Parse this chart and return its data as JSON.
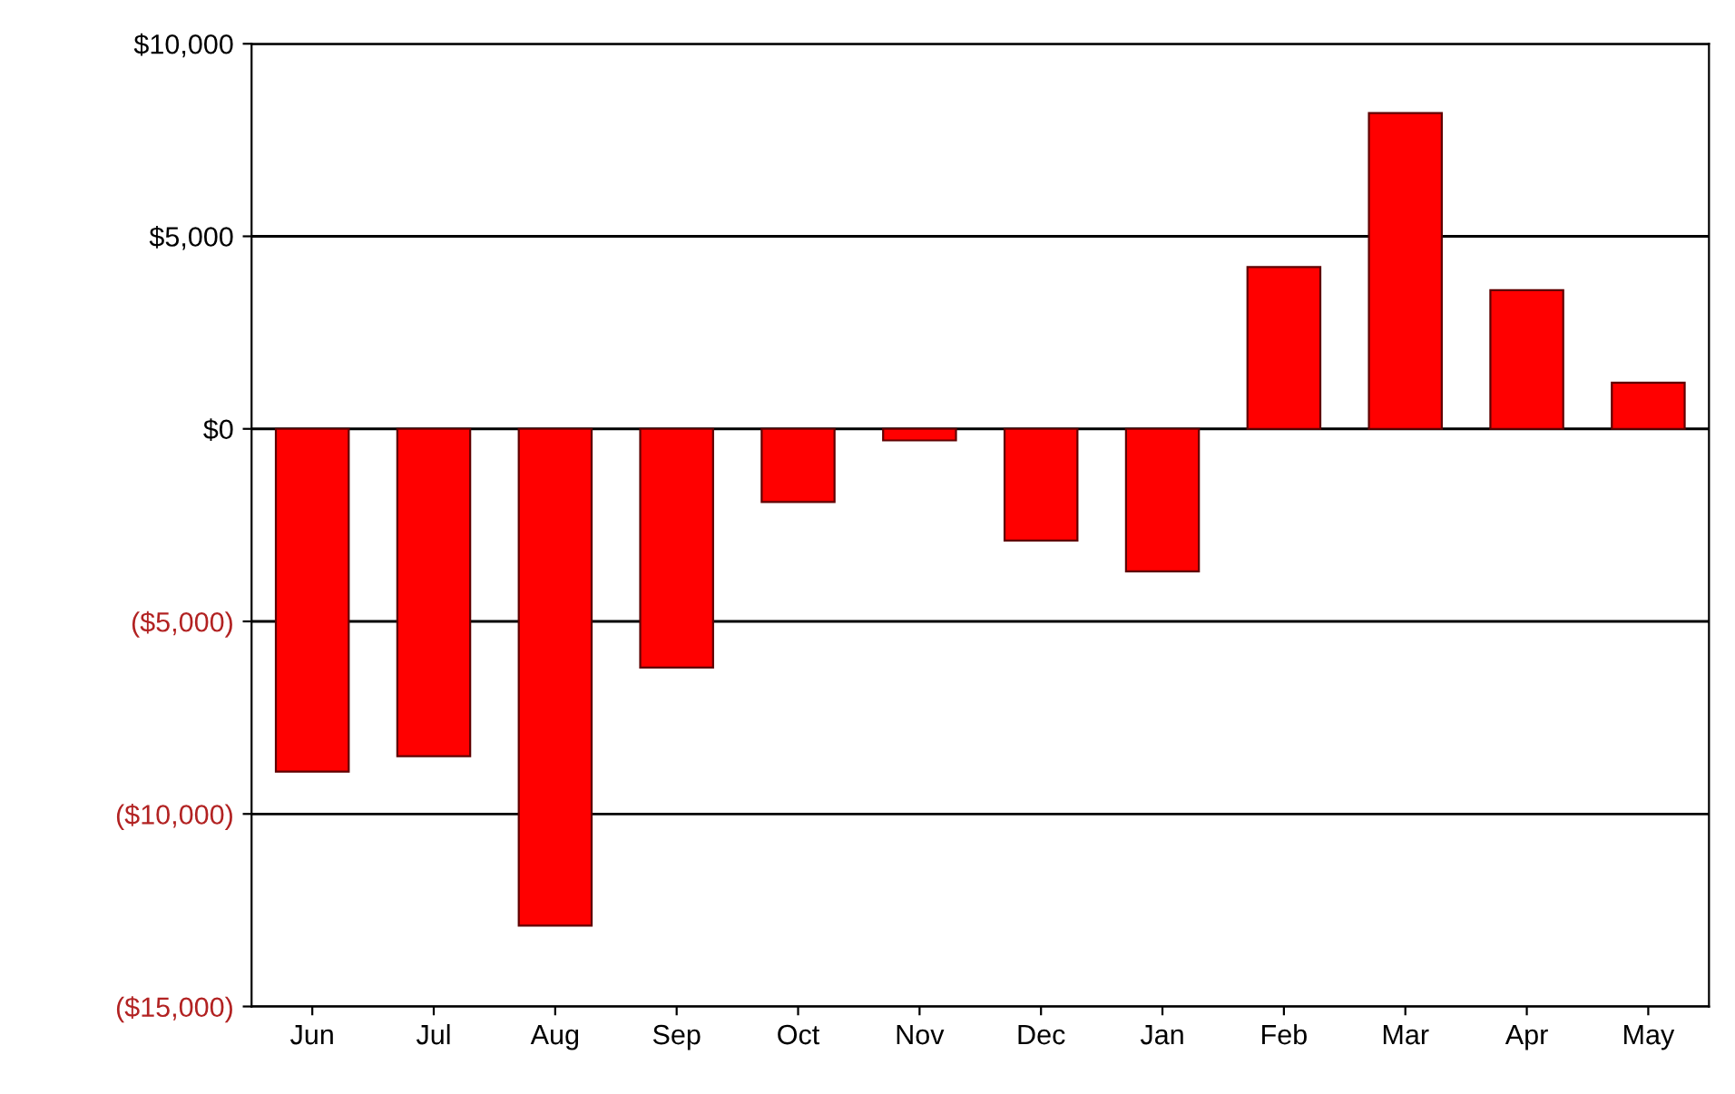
{
  "chart_data": {
    "type": "bar",
    "categories": [
      "Jun",
      "Jul",
      "Aug",
      "Sep",
      "Oct",
      "Nov",
      "Dec",
      "Jan",
      "Feb",
      "Mar",
      "Apr",
      "May"
    ],
    "values": [
      -8900,
      -8500,
      -12900,
      -6200,
      -1900,
      -300,
      -2900,
      -3700,
      4200,
      8200,
      3600,
      1200
    ],
    "color": "#ff0000",
    "ylim": [
      -15000,
      10000
    ],
    "yticks": [
      {
        "value": 10000,
        "label": "$10,000"
      },
      {
        "value": 5000,
        "label": "$5,000"
      },
      {
        "value": 0,
        "label": "$0"
      },
      {
        "value": -5000,
        "label": "($5,000)"
      },
      {
        "value": -10000,
        "label": "($10,000)"
      },
      {
        "value": -15000,
        "label": "($15,000)"
      }
    ],
    "grid": "y"
  }
}
